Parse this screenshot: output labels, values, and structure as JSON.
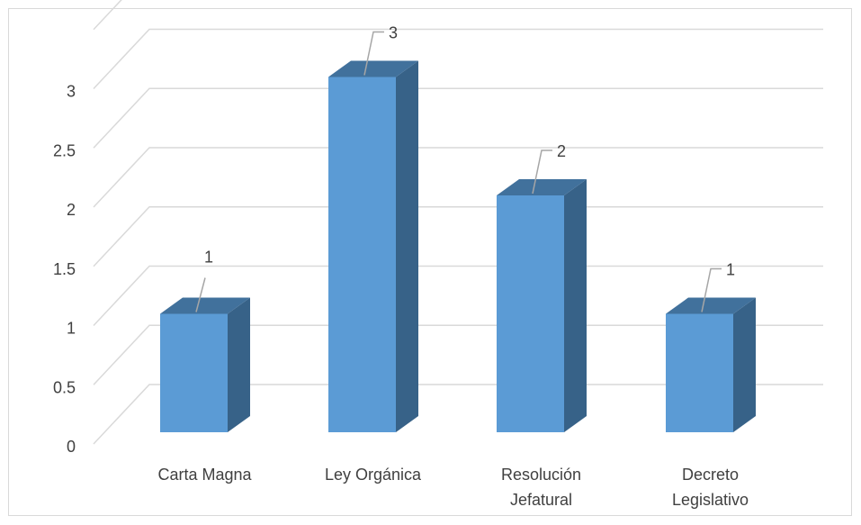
{
  "chart_data": {
    "type": "bar",
    "style": "3d-column",
    "categories": [
      "Carta Magna",
      "Ley Orgánica",
      "Resolución Jefatural",
      "Decreto Legislativo"
    ],
    "category_lines": [
      [
        "Carta Magna"
      ],
      [
        "Ley Orgánica"
      ],
      [
        "Resolución",
        "Jefatural"
      ],
      [
        "Decreto",
        "Legislativo"
      ]
    ],
    "values": [
      1,
      3,
      2,
      1
    ],
    "data_labels": [
      "1",
      "3",
      "2",
      "1"
    ],
    "y_ticks": [
      "0",
      "0.5",
      "1",
      "1.5",
      "2",
      "2.5",
      "3"
    ],
    "ylim": [
      0,
      3.5
    ],
    "title": "",
    "xlabel": "",
    "ylabel": "",
    "grid": true,
    "legend": "none",
    "colors": {
      "bar_front": "#5b9bd5",
      "bar_side": "#376288",
      "bar_top": "#41719c",
      "grid": "#d9d9d9",
      "text": "#404040",
      "leader": "#a6a6a6"
    }
  }
}
